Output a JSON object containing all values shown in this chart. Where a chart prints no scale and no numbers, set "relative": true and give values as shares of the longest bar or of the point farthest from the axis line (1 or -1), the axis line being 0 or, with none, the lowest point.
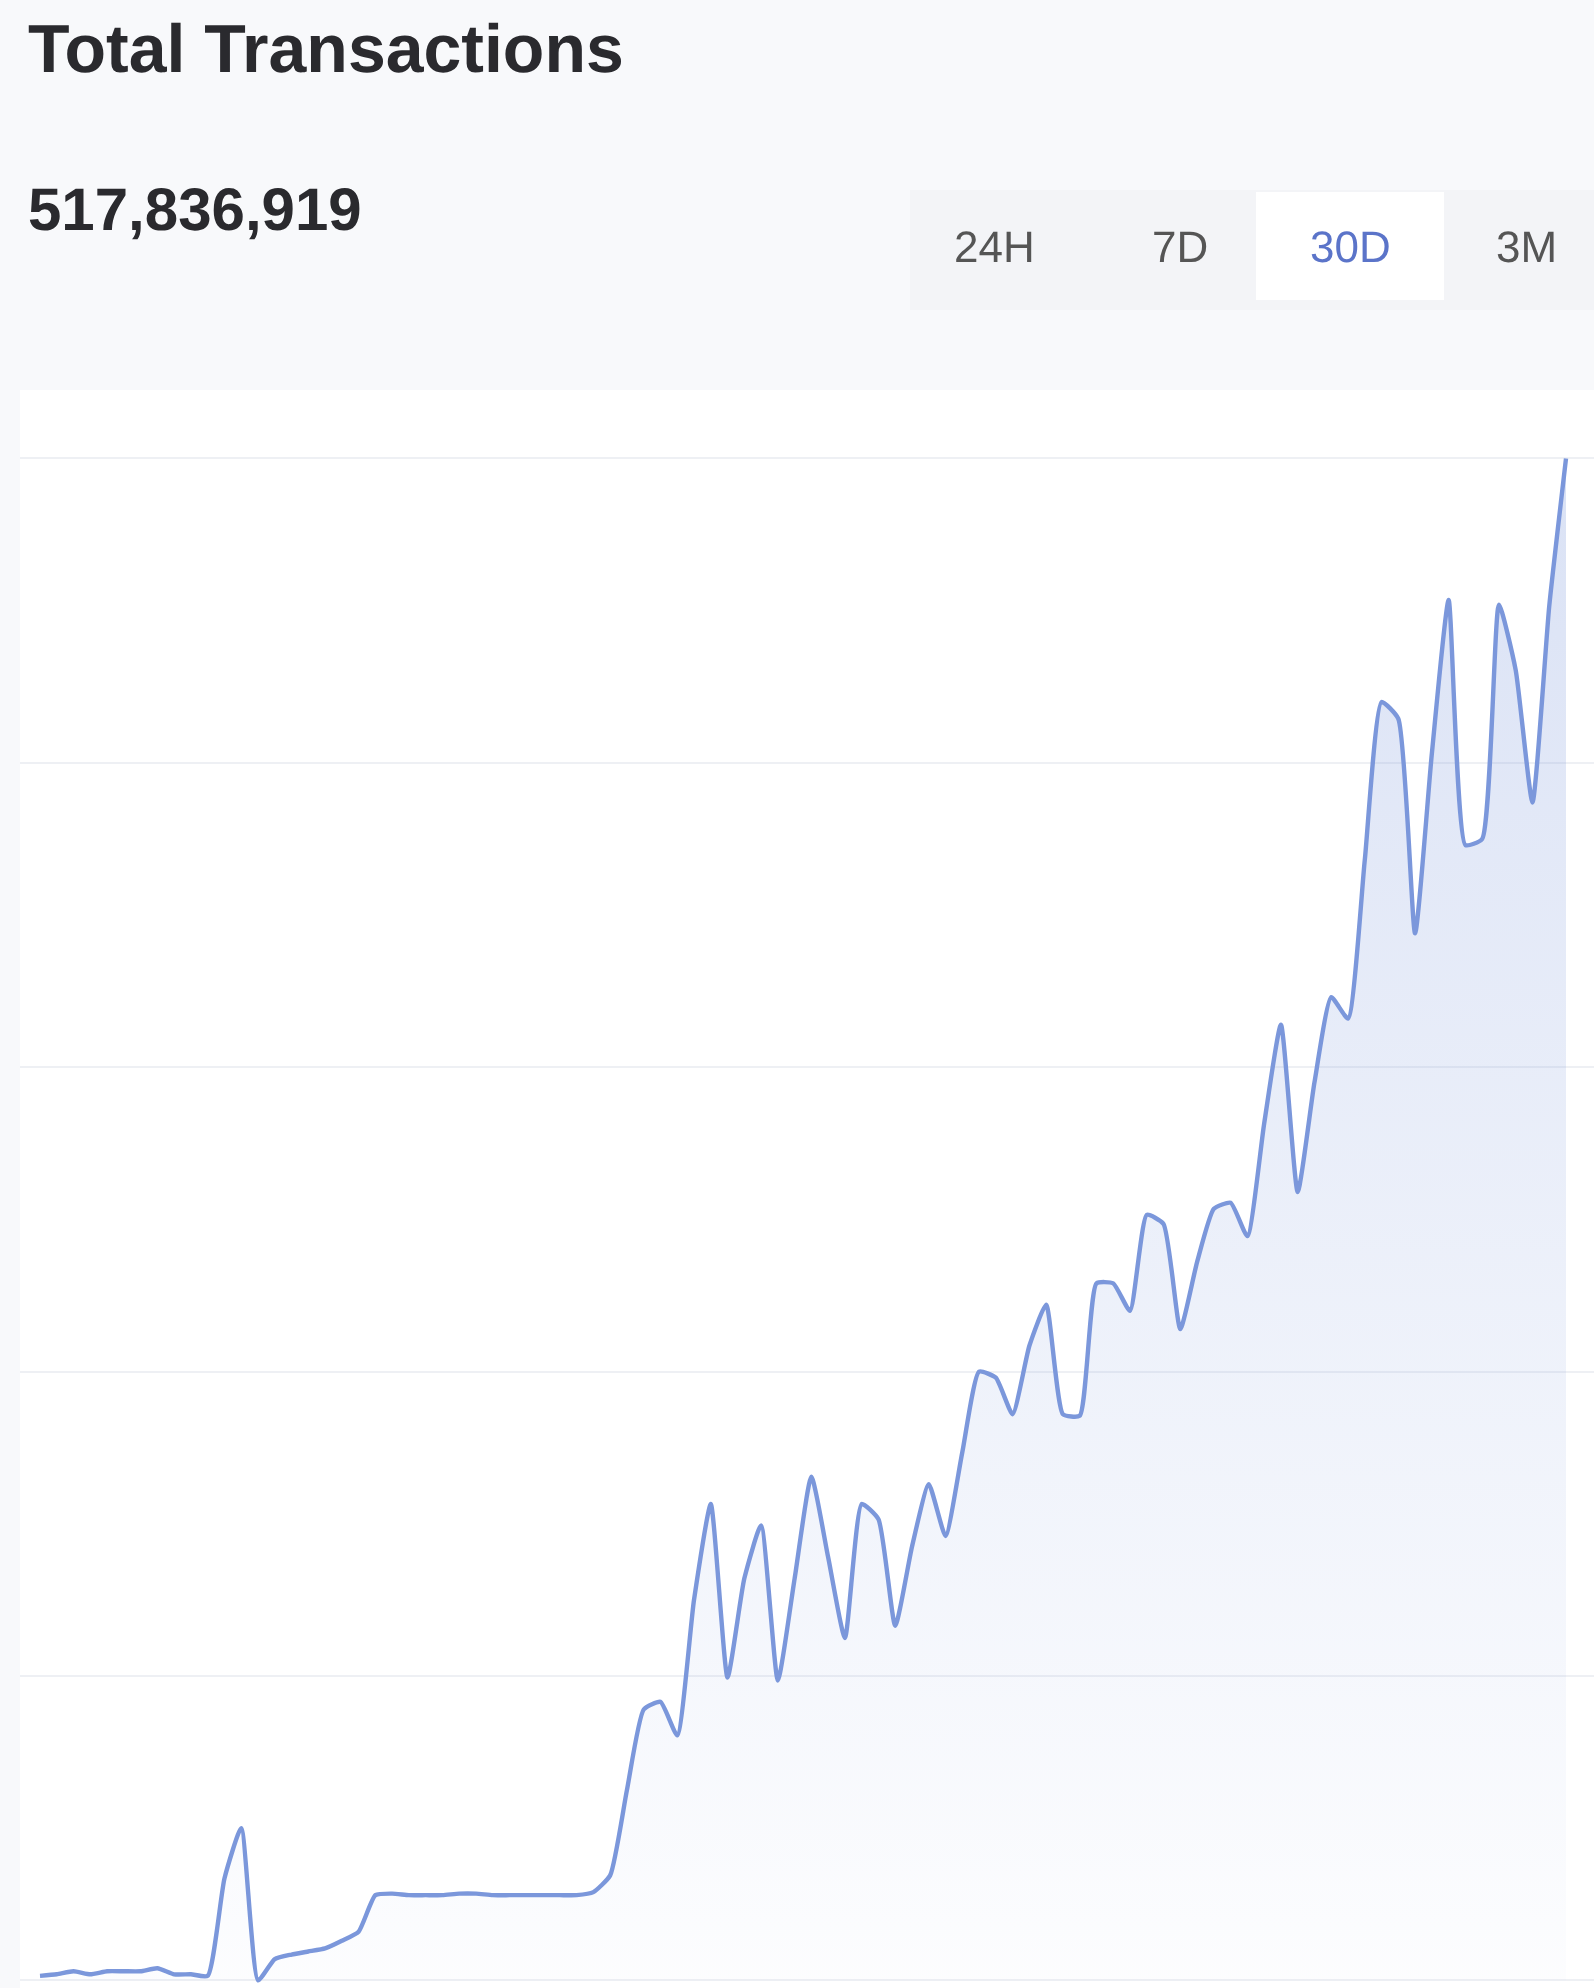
{
  "chart_data": {
    "type": "area",
    "title": "Total Transactions",
    "subtitle": "517,836,919",
    "annotations": [
      "24H",
      "7D",
      "30D",
      "3M"
    ],
    "relative": true,
    "grid": "y",
    "marker": "none",
    "line_style": "solid",
    "categories": [
      null,
      null,
      null,
      null,
      null,
      null,
      null,
      null,
      null,
      null,
      null,
      null,
      null,
      null,
      null,
      null,
      null,
      null,
      null,
      null,
      null,
      null,
      null,
      null,
      null,
      null,
      null,
      null,
      null,
      null,
      null,
      null,
      null,
      null,
      null,
      null,
      null,
      null,
      null,
      null,
      null,
      null,
      null,
      null,
      null,
      null,
      null,
      null,
      null,
      null,
      null,
      null,
      null,
      null,
      null,
      null,
      null,
      null,
      null,
      null,
      null,
      null,
      null,
      null,
      null,
      null,
      null,
      null,
      null,
      null,
      null,
      null,
      null,
      null,
      null,
      null,
      null,
      null,
      null,
      null,
      null,
      null,
      null,
      null,
      null,
      null,
      null,
      null,
      null,
      null,
      null,
      null
    ],
    "series": [
      {
        "color": "#7b97db",
        "values": [
          0.003,
          0.004,
          0.006,
          0.004,
          0.006,
          0.006,
          0.006,
          0.008,
          0.004,
          0.004,
          0.003,
          0.067,
          0.1,
          0,
          0.014,
          0.017,
          0.019,
          0.021,
          0.026,
          0.032,
          0.056,
          0.057,
          0.056,
          0.056,
          0.056,
          0.057,
          0.057,
          0.056,
          0.056,
          0.056,
          0.056,
          0.056,
          0.056,
          0.058,
          0.069,
          0.125,
          0.178,
          0.183,
          0.161,
          0.25,
          0.313,
          0.199,
          0.264,
          0.299,
          0.197,
          0.264,
          0.331,
          0.278,
          0.225,
          0.313,
          0.303,
          0.233,
          0.285,
          0.326,
          0.292,
          0.347,
          0.4,
          0.396,
          0.372,
          0.417,
          0.444,
          0.372,
          0.371,
          0.458,
          0.458,
          0.44,
          0.503,
          0.497,
          0.428,
          0.472,
          0.507,
          0.511,
          0.489,
          0.563,
          0.628,
          0.518,
          0.59,
          0.646,
          0.632,
          0.736,
          0.84,
          0.829,
          0.688,
          0.806,
          0.907,
          0.746,
          0.75,
          0.904,
          0.861,
          0.774,
          0.903,
          1
        ]
      }
    ]
  }
}
